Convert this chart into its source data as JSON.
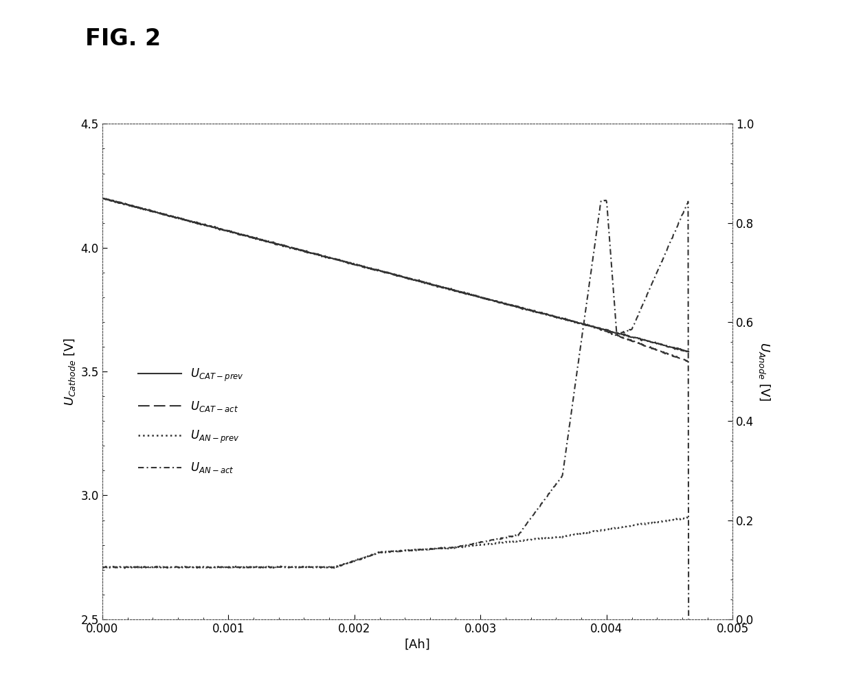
{
  "title": "FIG. 2",
  "xlabel": "[Ah]",
  "ylabel_left": "U_Cathode [V]",
  "ylabel_right": "U_Anode [V]",
  "xlim": [
    0.0,
    0.005
  ],
  "ylim_left": [
    2.5,
    4.5
  ],
  "ylim_right": [
    0.0,
    1.0
  ],
  "xticks": [
    0.0,
    0.001,
    0.002,
    0.003,
    0.004,
    0.005
  ],
  "yticks_left": [
    2.5,
    3.0,
    3.5,
    4.0,
    4.5
  ],
  "yticks_right": [
    0.0,
    0.2,
    0.4,
    0.6,
    0.8,
    1.0
  ],
  "line_color": "#333333",
  "background_color": "#ffffff",
  "fig_title_fontsize": 24,
  "axis_label_fontsize": 13,
  "tick_fontsize": 12,
  "legend_fontsize": 12
}
